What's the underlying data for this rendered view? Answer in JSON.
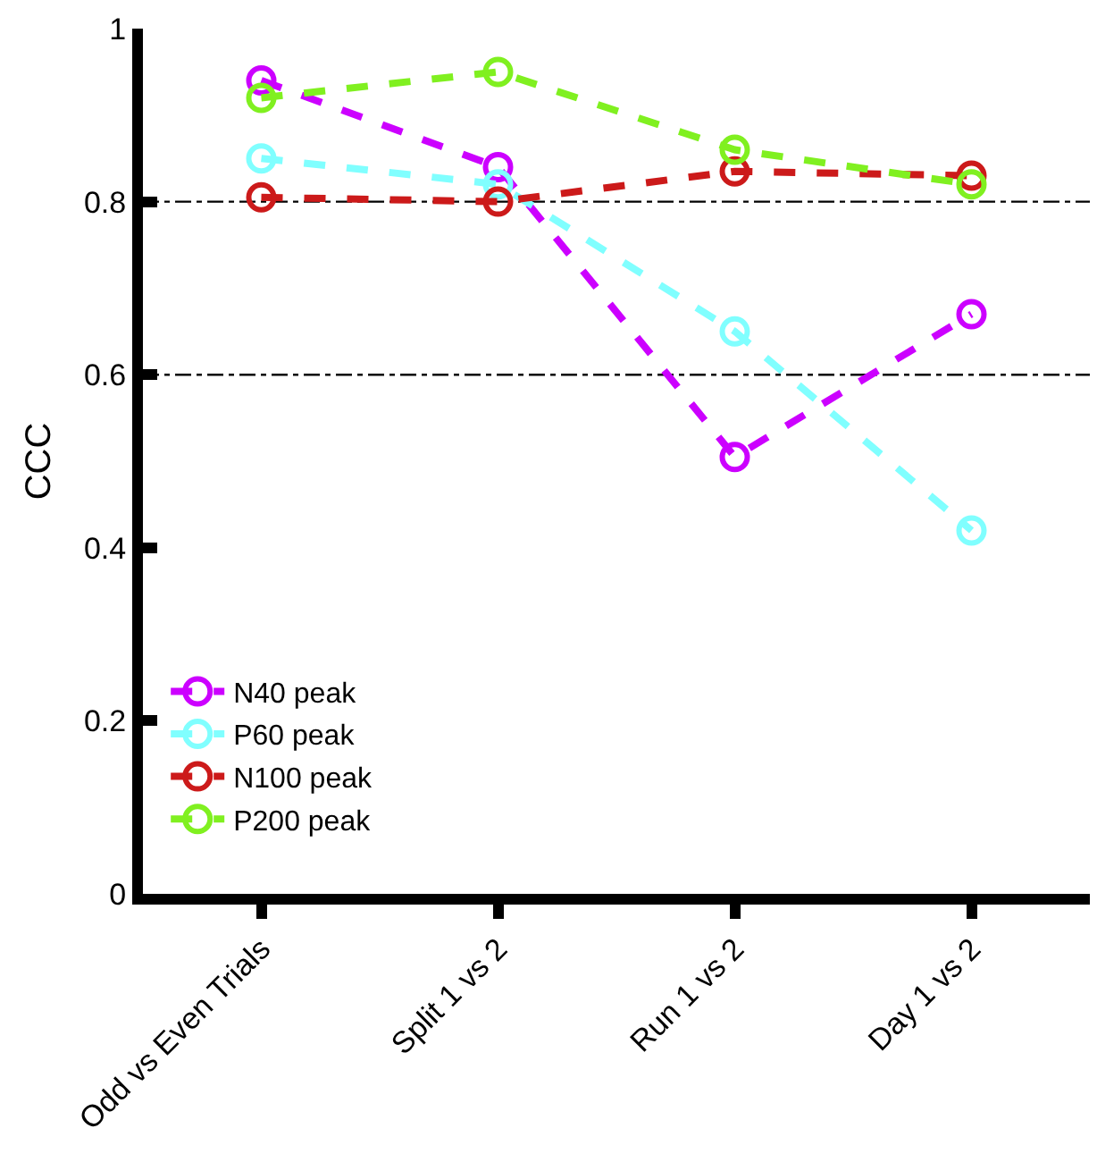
{
  "chart_data": {
    "type": "line",
    "ylabel": "CCC",
    "categories": [
      "Odd vs Even Trials",
      "Split 1 vs 2",
      "Run 1 vs 2",
      "Day 1 vs 2"
    ],
    "series": [
      {
        "name": "N40 peak",
        "color": "#cc00ff",
        "values": [
          0.94,
          0.84,
          0.505,
          0.67
        ]
      },
      {
        "name": "P60 peak",
        "color": "#80ffff",
        "values": [
          0.85,
          0.82,
          0.65,
          0.42
        ]
      },
      {
        "name": "N100 peak",
        "color": "#cc1a1a",
        "values": [
          0.805,
          0.8,
          0.835,
          0.83
        ]
      },
      {
        "name": "P200 peak",
        "color": "#80f020",
        "values": [
          0.92,
          0.95,
          0.86,
          0.82
        ]
      }
    ],
    "ylim": [
      0,
      1
    ],
    "yticks": [
      0,
      0.2,
      0.4,
      0.6,
      0.8,
      1
    ],
    "ref_lines": [
      {
        "axis": "y",
        "value": 0.8,
        "color": "#000000",
        "line_style": "dashdot"
      },
      {
        "axis": "y",
        "value": 0.6,
        "color": "#000000",
        "line_style": "dashdot"
      }
    ],
    "grid": false,
    "legend": "bottom left",
    "marker": "circle",
    "line_style": "dashed"
  }
}
